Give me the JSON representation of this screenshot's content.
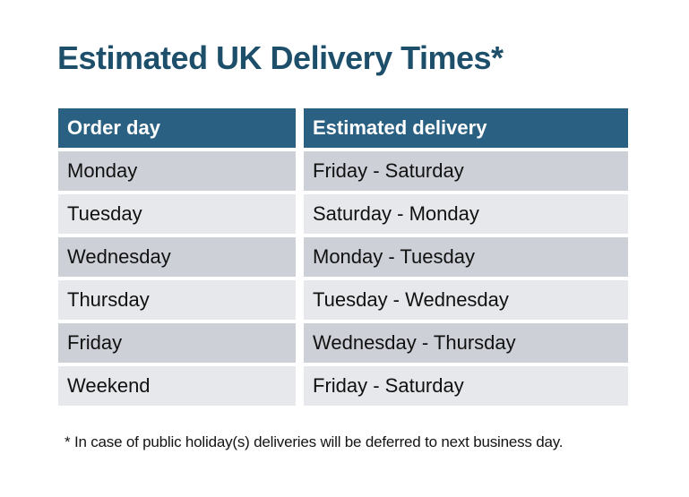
{
  "title": "Estimated UK Delivery Times*",
  "colors": {
    "title_color": "#1D4F6B",
    "header_bg": "#2A6182",
    "header_text": "#FFFFFF",
    "row_dark": "#CDD1D7",
    "row_light": "#E6E8EB",
    "cell_text": "#111111"
  },
  "table": {
    "headers": [
      "Order day",
      "Estimated delivery"
    ],
    "rows": [
      {
        "order_day": "Monday",
        "estimated_delivery": "Friday - Saturday"
      },
      {
        "order_day": "Tuesday",
        "estimated_delivery": "Saturday - Monday"
      },
      {
        "order_day": "Wednesday",
        "estimated_delivery": "Monday - Tuesday"
      },
      {
        "order_day": "Thursday",
        "estimated_delivery": "Tuesday - Wednesday"
      },
      {
        "order_day": "Friday",
        "estimated_delivery": "Wednesday - Thursday"
      },
      {
        "order_day": "Weekend",
        "estimated_delivery": "Friday - Saturday"
      }
    ]
  },
  "footnote": "* In case of public holiday(s) deliveries will be deferred to next business day.",
  "chart_data": {
    "type": "table",
    "title": "Estimated UK Delivery Times*",
    "columns": [
      "Order day",
      "Estimated delivery"
    ],
    "rows": [
      [
        "Monday",
        "Friday - Saturday"
      ],
      [
        "Tuesday",
        "Saturday - Monday"
      ],
      [
        "Wednesday",
        "Monday - Tuesday"
      ],
      [
        "Thursday",
        "Tuesday - Wednesday"
      ],
      [
        "Friday",
        "Wednesday - Thursday"
      ],
      [
        "Weekend",
        "Friday - Saturday"
      ]
    ],
    "footnote": "* In case of public holiday(s) deliveries will be deferred to next business day."
  }
}
